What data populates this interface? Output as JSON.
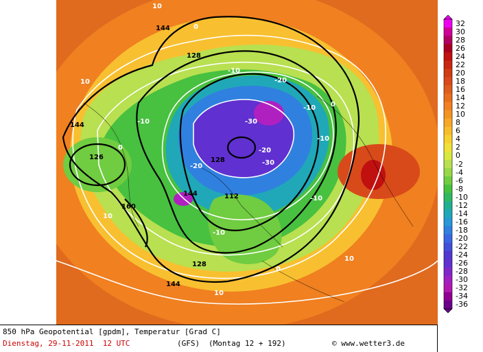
{
  "map": {
    "title": "850 hPa Geopotential [gpdm], Temperatur [Grad C]",
    "date_line": "Dienstag, 29-11-2011  12 UTC",
    "model": "(GFS)",
    "run": "(Montag 12 + 192)",
    "copyright": "© www.wetter3.de",
    "colors": {
      "very_warm": "#d84a1a",
      "warm": "#f08020",
      "mild": "#f8c830",
      "cool": "#b8e050",
      "cold": "#40c040",
      "colder": "#20b0a0",
      "very_cold": "#3080e0",
      "frigid": "#6030d0",
      "extreme": "#b020c0"
    },
    "contour_labels": [
      {
        "text": "144",
        "kind": "black"
      },
      {
        "text": "128",
        "kind": "black"
      },
      {
        "text": "112",
        "kind": "black"
      },
      {
        "text": "160",
        "kind": "black"
      },
      {
        "text": "126",
        "kind": "black"
      },
      {
        "text": "-10",
        "kind": "white"
      },
      {
        "text": "-20",
        "kind": "white"
      },
      {
        "text": "-30",
        "kind": "white"
      },
      {
        "text": "10",
        "kind": "white"
      },
      {
        "text": "0",
        "kind": "white"
      }
    ]
  },
  "legend": {
    "labels": [
      "32",
      "30",
      "28",
      "26",
      "24",
      "22",
      "20",
      "18",
      "16",
      "14",
      "12",
      "10",
      "8",
      "6",
      "4",
      "2",
      "0",
      "-2",
      "-4",
      "-6",
      "-8",
      "-10",
      "-12",
      "-14",
      "-16",
      "-18",
      "-20",
      "-22",
      "-24",
      "-26",
      "-28",
      "-30",
      "-32",
      "-34",
      "-36"
    ],
    "colors": [
      "#f000f0",
      "#d0009a",
      "#b00060",
      "#a80020",
      "#c01010",
      "#c82810",
      "#d03c14",
      "#d84a1a",
      "#e05c1c",
      "#e86e1e",
      "#f08020",
      "#f49424",
      "#f8a828",
      "#f8bc2c",
      "#f8d030",
      "#f0e038",
      "#d8e840",
      "#b8e050",
      "#98d848",
      "#70cc40",
      "#48c040",
      "#30b860",
      "#20b090",
      "#20a8b8",
      "#2898d8",
      "#3080e0",
      "#3868e0",
      "#4050d8",
      "#5038d0",
      "#6030d0",
      "#8028c8",
      "#a020c0",
      "#b018b0",
      "#900090",
      "#6a008a"
    ]
  }
}
